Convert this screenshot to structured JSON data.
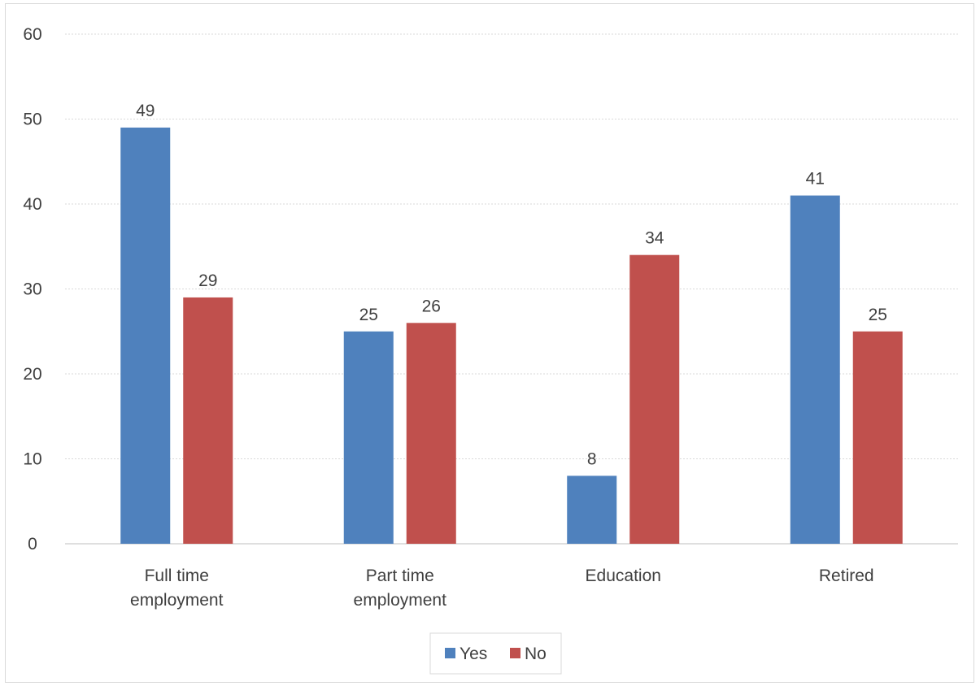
{
  "chart_data": {
    "type": "bar",
    "title": "",
    "xlabel": "",
    "ylabel": "",
    "categories": [
      [
        "Full time",
        "employment"
      ],
      [
        "Part time",
        "employment"
      ],
      [
        "Education"
      ],
      [
        "Retired"
      ]
    ],
    "series": [
      {
        "name": "Yes",
        "color": "#4f81bd",
        "values": [
          49,
          25,
          8,
          41
        ]
      },
      {
        "name": "No",
        "color": "#c0504d",
        "values": [
          29,
          26,
          34,
          25
        ]
      }
    ],
    "ylim": [
      0,
      60
    ],
    "yticks": [
      0,
      10,
      20,
      30,
      40,
      50,
      60
    ],
    "grid": true,
    "data_labels": true,
    "legend_position": "bottom"
  }
}
